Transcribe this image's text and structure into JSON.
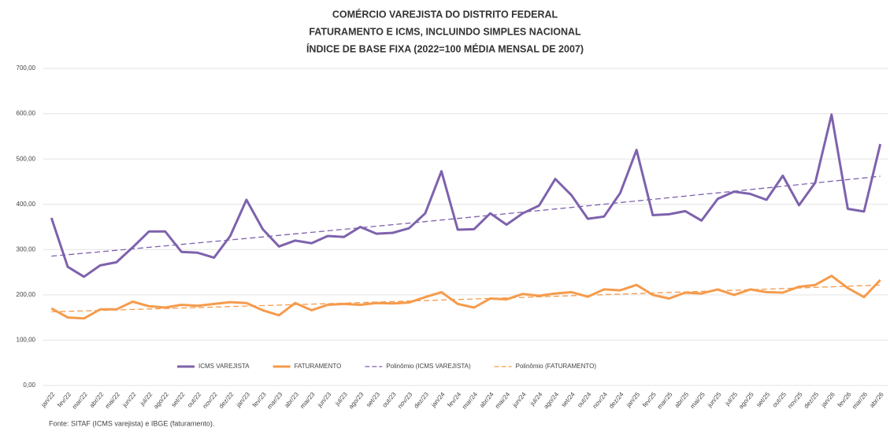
{
  "chart_data": {
    "type": "line",
    "title": [
      "COMÉRCIO VAREJISTA DO DISTRITO FEDERAL",
      "FATURAMENTO E ICMS, INCLUINDO SIMPLES NACIONAL",
      "ÍNDICE DE BASE FIXA (2022=100 MÉDIA MENSAL DE 2007)"
    ],
    "categories": [
      "jan/22",
      "fev/22",
      "mar/22",
      "abr/22",
      "mai/22",
      "jun/22",
      "jul/22",
      "ago/22",
      "set/22",
      "out/22",
      "nov/22",
      "dez/22",
      "jan/23",
      "fev/23",
      "mar/23",
      "abr/23",
      "mai/23",
      "jun/23",
      "jul/23",
      "ago/23",
      "set/23",
      "out/23",
      "nov/23",
      "dez/23",
      "jan/24",
      "fev/24",
      "mar/24",
      "abr/24",
      "mai/24",
      "jun/24",
      "jul/24",
      "ago/24",
      "set/24",
      "out/24",
      "nov/24",
      "dez/24",
      "jan/25",
      "fev/25",
      "mar/25",
      "abr/25",
      "mai/25",
      "jun/25",
      "jul/25",
      "ago/25",
      "set/25",
      "out/25",
      "nov/25",
      "dez/25",
      "jan/26",
      "fev/26",
      "mar/26",
      "abr/26"
    ],
    "series": [
      {
        "name": "ICMS VAREJISTA",
        "color": "#7e62ad",
        "trendline": "Polinômio (ICMS VAREJISTA)",
        "trend_order": 2,
        "values": [
          370,
          262,
          240,
          265,
          272,
          305,
          340,
          340,
          295,
          293,
          282,
          330,
          410,
          345,
          307,
          320,
          314,
          330,
          328,
          350,
          335,
          337,
          347,
          380,
          473,
          344,
          345,
          380,
          355,
          380,
          397,
          456,
          420,
          368,
          373,
          425,
          520,
          376,
          378,
          385,
          364,
          412,
          428,
          423,
          410,
          463,
          398,
          448,
          598,
          390,
          384,
          533
        ]
      },
      {
        "name": "FATURAMENTO",
        "color": "#f59b4c",
        "trendline": "Polinômio (FATURAMENTO)",
        "trend_order": 2,
        "values": [
          170,
          150,
          148,
          168,
          168,
          185,
          175,
          172,
          178,
          176,
          180,
          184,
          182,
          166,
          155,
          182,
          166,
          178,
          180,
          178,
          182,
          181,
          183,
          195,
          206,
          180,
          172,
          192,
          190,
          202,
          198,
          203,
          206,
          196,
          212,
          210,
          222,
          200,
          192,
          205,
          203,
          212,
          200,
          212,
          206,
          205,
          218,
          222,
          242,
          215,
          195,
          233
        ]
      }
    ],
    "ylim": [
      0,
      700
    ],
    "yticks": [
      {
        "value": 0,
        "label": "0,00"
      },
      {
        "value": 100,
        "label": "100,00"
      },
      {
        "value": 200,
        "label": "200,00"
      },
      {
        "value": 300,
        "label": "300,00"
      },
      {
        "value": 400,
        "label": "400,00"
      },
      {
        "value": 500,
        "label": "500,00"
      },
      {
        "value": 600,
        "label": "600,00"
      },
      {
        "value": 700,
        "label": "700,00"
      }
    ],
    "grid": true,
    "legend": "bottom",
    "source": "Fonte: SITAF (ICMS varejista) e IBGE (faturamento)."
  }
}
